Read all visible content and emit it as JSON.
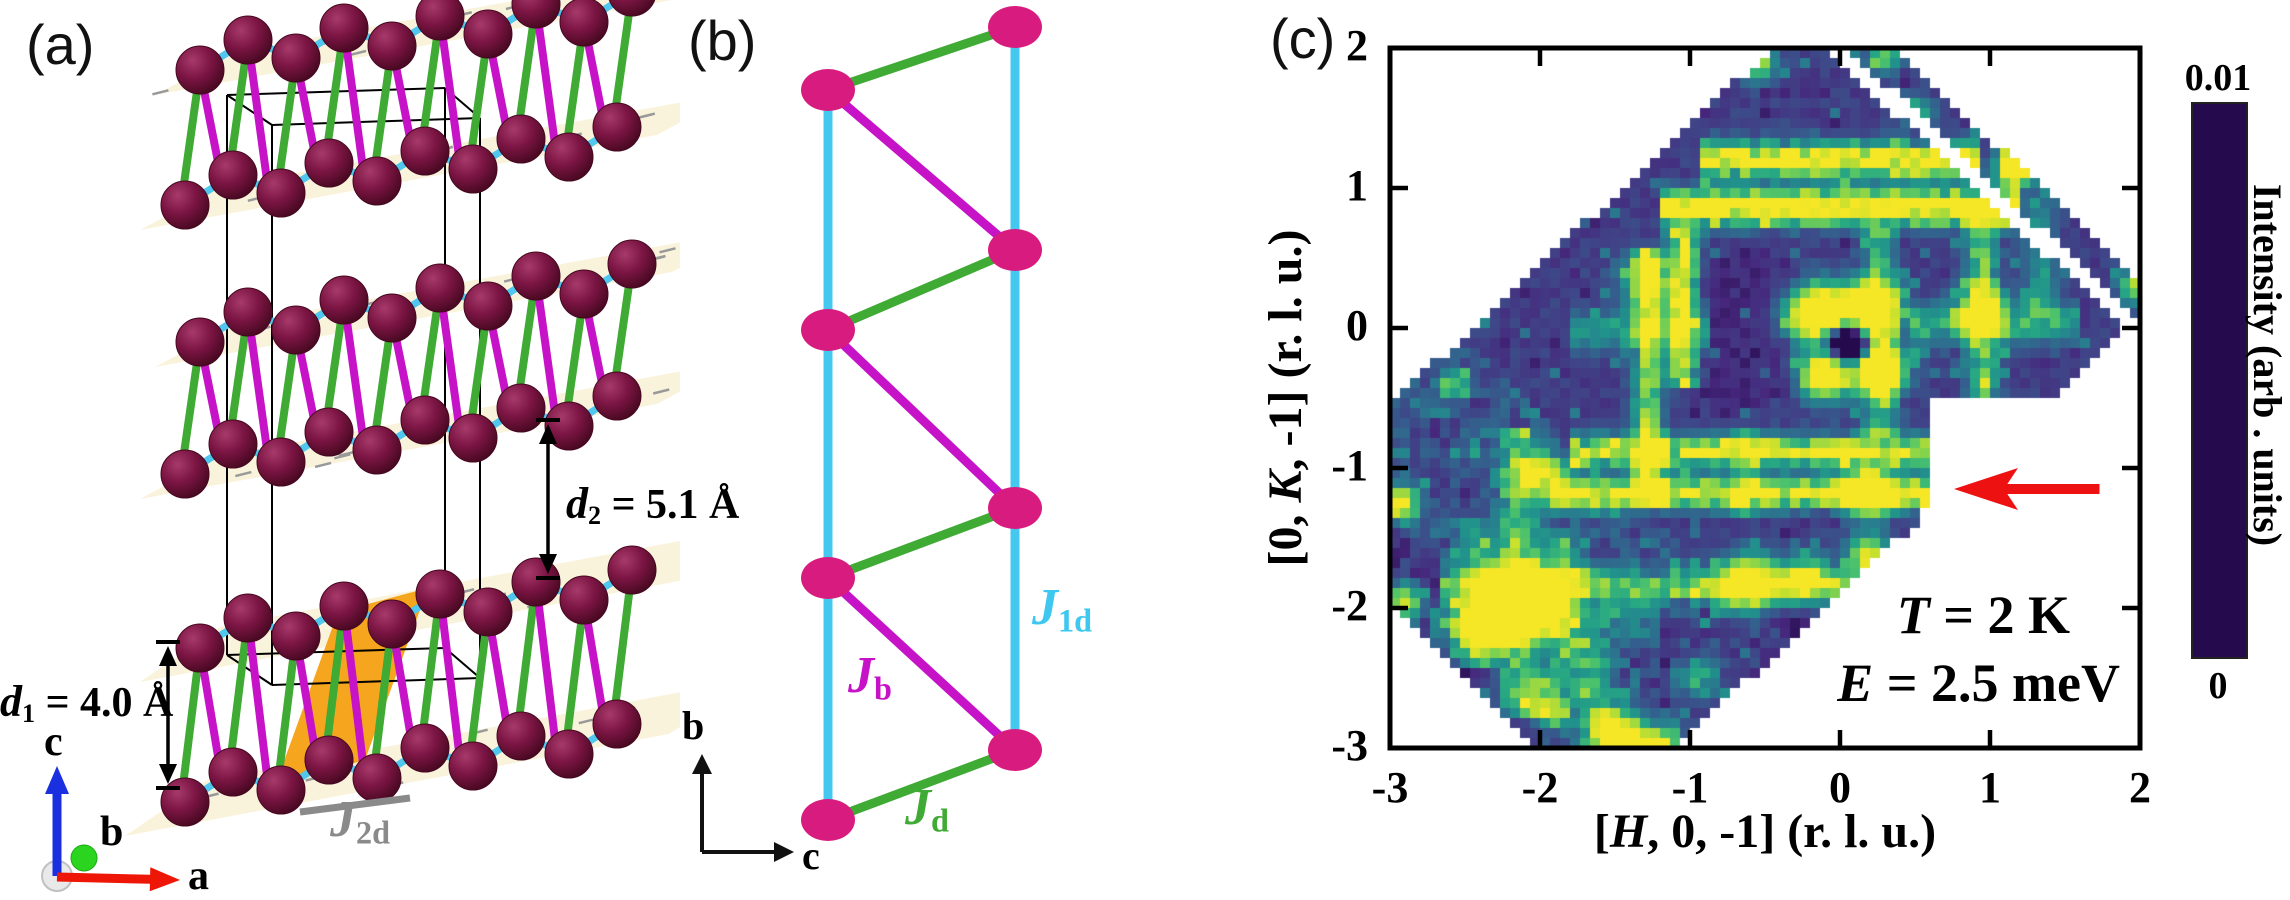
{
  "panel_a": {
    "label": "(a)",
    "d1": {
      "sym": "d",
      "sub": "1",
      "rest": " = 4.0 Å"
    },
    "d2": {
      "sym": "d",
      "sub": "2",
      "rest": " = 5.1 Å"
    },
    "j2d": {
      "sym": "J",
      "sub": "2d",
      "color": "#8a8a8a"
    },
    "axis_labels": {
      "a": "a",
      "b": "b",
      "c": "c"
    },
    "colors": {
      "sphere": "#7c1544",
      "sphere_hi": "#a63a6b",
      "sphere_dark": "#45081f",
      "bond_green": "#3faa34",
      "bond_magenta": "#c713c7",
      "bond_cyan": "#4fc7ef",
      "plane": "#faf3dc",
      "plane_dash": "#999999",
      "plane_orange": "#f6a51f",
      "cell_box": "#000000",
      "axis_a": "#ee1606",
      "axis_b": "#2bd51f",
      "axis_c": "#1a2fe0"
    }
  },
  "panel_b": {
    "label": "(b)",
    "couplings": {
      "j1d": {
        "sym": "J",
        "sub": "1d",
        "color": "#3ec8f0"
      },
      "jb": {
        "sym": "J",
        "sub": "b",
        "color": "#c713c7"
      },
      "jd": {
        "sym": "J",
        "sub": "d",
        "color": "#3faa34"
      }
    },
    "axis_labels": {
      "vertical": "b",
      "horizontal": "c"
    },
    "node_color": "#d81b7f",
    "rail_color": "#45c8f0"
  },
  "panel_c": {
    "label": "(c)",
    "chart_data": {
      "type": "heatmap",
      "xlabel": {
        "pre": "[",
        "var": "H",
        "post": ", 0, -1] (r. l. u.)"
      },
      "ylabel": {
        "pre": "[0, ",
        "var": "K",
        "post": ", -1] (r. l. u.)"
      },
      "xlim": [
        -3,
        2
      ],
      "ylim": [
        -3,
        2
      ],
      "xtick_values": [
        -3,
        -2,
        -1,
        0,
        1,
        2
      ],
      "xtick_labels": [
        "-3",
        "-2",
        "-1",
        "0",
        "1",
        "2"
      ],
      "ytick_values": [
        2,
        1,
        0,
        -1,
        -2,
        -3
      ],
      "ytick_labels": [
        "2",
        "1",
        "0",
        "-1",
        "-2",
        "-3"
      ],
      "annotations": {
        "temperature": {
          "var": "T",
          "rest": " = 2 K"
        },
        "energy": {
          "var": "E",
          "rest": " = 2.5 meV"
        }
      },
      "colorbar": {
        "max_label": "0.01",
        "min_label": "0",
        "title": "Intensity (arb . units)",
        "colormap": "viridis"
      },
      "arrow": {
        "color": "#ee1111",
        "tip_h": 0.76,
        "k": -1.15,
        "tail_h": 1.73
      },
      "colormap_stops": [
        [
          0.0,
          "#250b4e"
        ],
        [
          0.1,
          "#46277c"
        ],
        [
          0.2,
          "#404387"
        ],
        [
          0.3,
          "#345f8d"
        ],
        [
          0.4,
          "#2a788e"
        ],
        [
          0.5,
          "#21918c"
        ],
        [
          0.6,
          "#27a883"
        ],
        [
          0.7,
          "#4cc26c"
        ],
        [
          0.8,
          "#85d34c"
        ],
        [
          0.9,
          "#c4e02e"
        ],
        [
          1.0,
          "#f5e626"
        ]
      ],
      "coverage": {
        "t_min": -2.45,
        "t_max": 1.9,
        "s_min": -5.0,
        "s_max": 1.9,
        "strip_s": [
          2.05,
          2.35
        ],
        "bottom_curve": {
          "h_apex": 0.55,
          "k_start": -1.3,
          "depth": 1.705,
          "span": 1.7
        },
        "notch": {
          "h_edge": 0.63,
          "k_range": [
            -1.32,
            -0.53
          ]
        }
      },
      "grid": {
        "nx": 75,
        "ny": 70
      },
      "background": {
        "base": 0.13,
        "noise": 0.1,
        "teal_wash_s": -2.6,
        "teal_wash_amp": 0.16,
        "corner_dark_s": -4.35,
        "corner_dark": -0.1,
        "speckle_p": 0.95,
        "speckle_amp": 0.22
      },
      "dark_zones": [
        [
          -0.55,
          -2.35,
          1.15,
          0.45,
          -0.08
        ],
        [
          0.1,
          -1.95,
          0.8,
          0.35,
          -0.06
        ],
        [
          -0.6,
          0.0,
          0.5,
          0.55,
          -0.07
        ]
      ],
      "h_streaks": [
        [
          1.2,
          -0.95,
          0.92,
          1.15,
          0.09
        ],
        [
          0.86,
          -1.2,
          1.2,
          1.35,
          0.085
        ],
        [
          -0.88,
          -1.8,
          0.65,
          0.95,
          0.08
        ],
        [
          -1.18,
          -1.9,
          0.65,
          1.05,
          0.075
        ],
        [
          -1.85,
          -2.65,
          0.5,
          0.55,
          0.1
        ],
        [
          -0.02,
          -1.8,
          -0.85,
          0.45,
          0.1
        ],
        [
          0.03,
          0.5,
          1.6,
          0.5,
          0.1
        ],
        [
          -2.12,
          -2.7,
          -1.2,
          0.32,
          0.1
        ],
        [
          1.2,
          1.05,
          1.75,
          0.5,
          0.09
        ]
      ],
      "v_streaks": [
        [
          -1.28,
          -1.3,
          0.6,
          0.8,
          0.07
        ],
        [
          -1.04,
          -0.4,
          0.68,
          0.95,
          0.065
        ],
        [
          0.27,
          -0.78,
          0.7,
          0.55,
          0.08
        ],
        [
          0.95,
          -0.5,
          0.85,
          0.65,
          0.08
        ],
        [
          1.33,
          0.05,
          0.95,
          0.4,
          0.08
        ],
        [
          -2.15,
          -2.75,
          -0.75,
          0.5,
          0.1
        ],
        [
          -2.42,
          -2.45,
          -1.35,
          0.38,
          0.09
        ],
        [
          -1.85,
          -2.6,
          -1.4,
          0.32,
          0.09
        ],
        [
          -1.62,
          -3.0,
          -2.25,
          0.45,
          0.1
        ],
        [
          -0.62,
          -1.35,
          -0.75,
          0.33,
          0.07
        ]
      ],
      "blobs": [
        [
          -0.15,
          0.1,
          1.5,
          0.14
        ],
        [
          0.2,
          0.13,
          1.4,
          0.13
        ],
        [
          -0.1,
          -0.33,
          1.25,
          0.12
        ],
        [
          0.26,
          -0.3,
          1.2,
          0.12
        ],
        [
          0.05,
          -0.1,
          -1.15,
          0.11
        ],
        [
          -2.1,
          -1.95,
          1.3,
          0.17
        ],
        [
          -2.38,
          -2.15,
          0.9,
          0.13
        ],
        [
          -0.6,
          -1.83,
          1.0,
          0.14
        ],
        [
          -0.22,
          -1.8,
          0.8,
          0.11
        ],
        [
          0.2,
          -1.18,
          1.0,
          0.12
        ],
        [
          -2.0,
          -1.05,
          0.8,
          0.11
        ],
        [
          -2.95,
          -1.25,
          0.9,
          0.09
        ],
        [
          -2.92,
          -1.95,
          0.8,
          0.09
        ],
        [
          1.17,
          1.15,
          1.0,
          0.1
        ],
        [
          -1.48,
          -2.92,
          1.1,
          0.12
        ],
        [
          -1.2,
          -3.0,
          0.9,
          0.1
        ],
        [
          -1.9,
          -2.75,
          0.6,
          0.09
        ],
        [
          0.18,
          -1.62,
          0.85,
          0.1
        ],
        [
          -0.55,
          1.9,
          0.7,
          0.09
        ],
        [
          0.3,
          1.95,
          0.6,
          0.08
        ],
        [
          1.98,
          0.3,
          0.7,
          0.09
        ],
        [
          -2.6,
          -0.4,
          0.55,
          0.07
        ],
        [
          0.95,
          0.12,
          0.6,
          0.12
        ],
        [
          -1.28,
          0.35,
          0.5,
          0.14
        ],
        [
          -2.0,
          -2.6,
          0.5,
          0.12
        ],
        [
          -0.95,
          -2.5,
          0.4,
          0.12
        ],
        [
          0.5,
          1.55,
          0.5,
          0.08
        ]
      ]
    }
  }
}
